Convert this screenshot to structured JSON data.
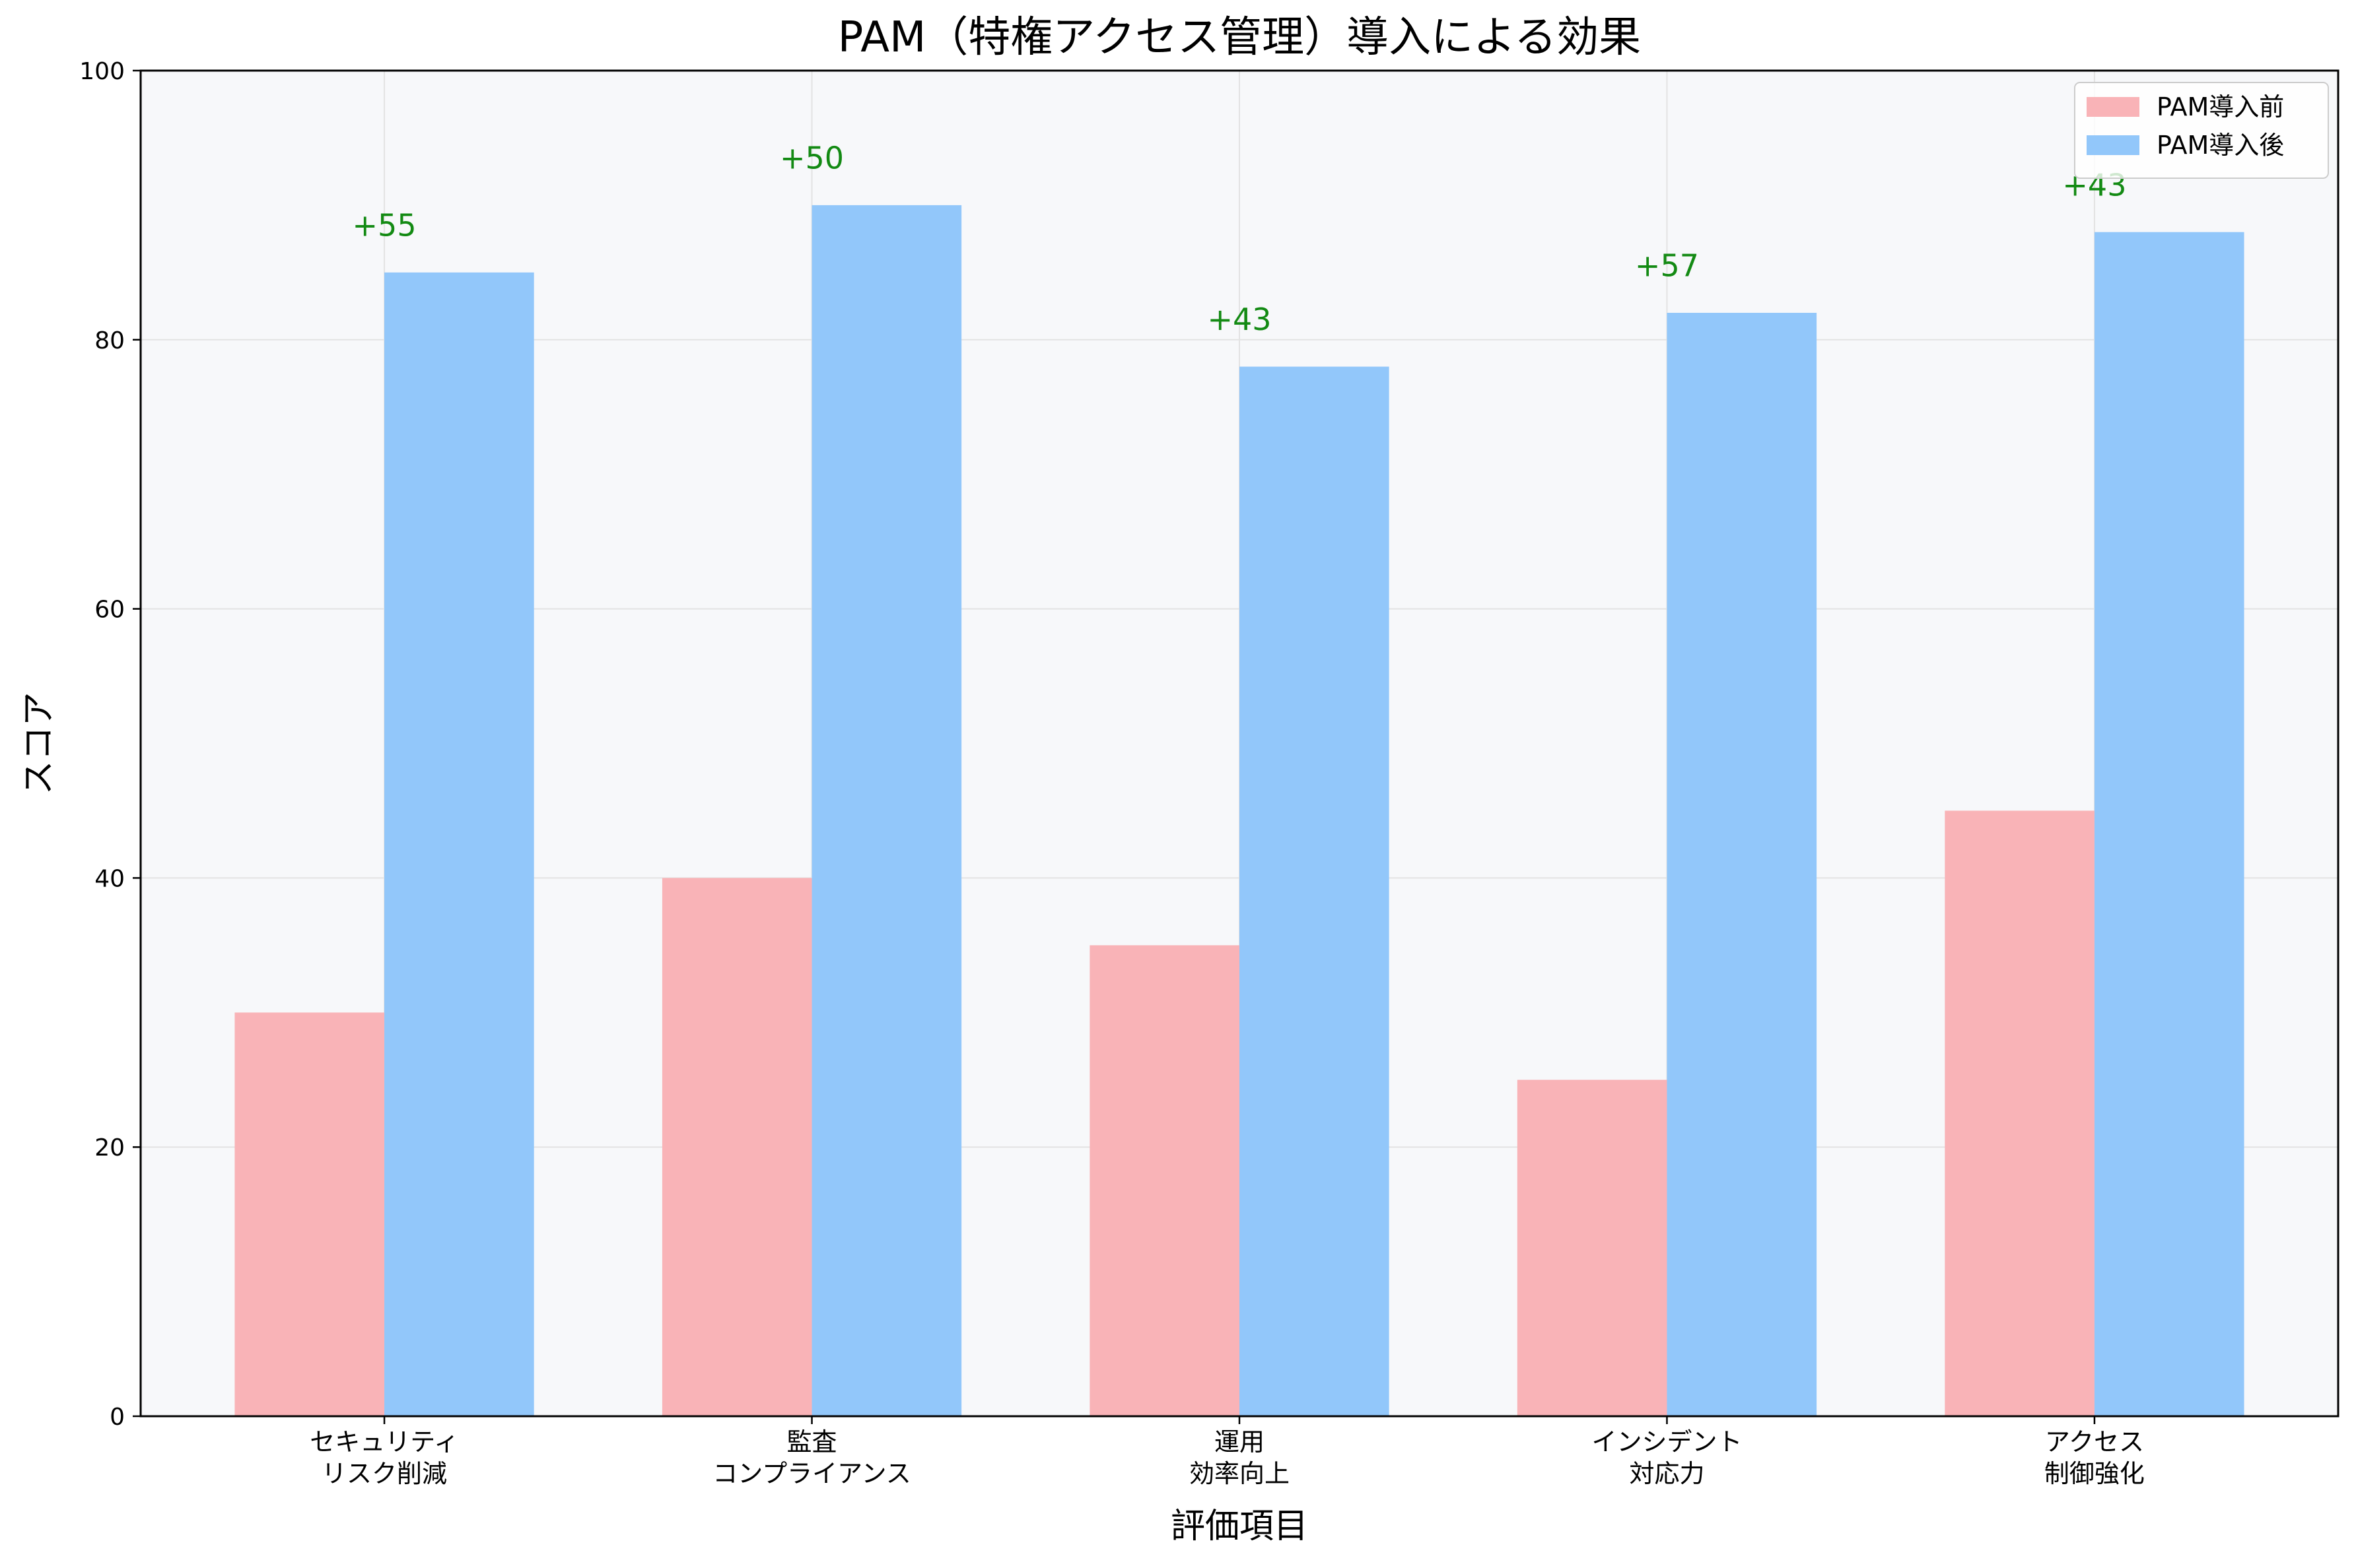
{
  "chart_data": {
    "type": "bar",
    "title": "PAM（特権アクセス管理）導入による効果",
    "xlabel": "評価項目",
    "ylabel": "スコア",
    "ylim": [
      0,
      100
    ],
    "yticks": [
      0,
      20,
      40,
      60,
      80,
      100
    ],
    "grid": true,
    "legend_position": "top-right",
    "categories": [
      [
        "セキュリティ",
        "リスク削減"
      ],
      [
        "監査",
        "コンプライアンス"
      ],
      [
        "運用",
        "効率向上"
      ],
      [
        "インシデント",
        "対応力"
      ],
      [
        "アクセス",
        "制御強化"
      ]
    ],
    "series": [
      {
        "name": "PAM導入前",
        "color": "#f9b3b7",
        "values": [
          30,
          40,
          35,
          25,
          45
        ]
      },
      {
        "name": "PAM導入後",
        "color": "#92c7fa",
        "values": [
          85,
          90,
          78,
          82,
          88
        ]
      }
    ],
    "annotations": {
      "labels": [
        "+55",
        "+50",
        "+43",
        "+57",
        "+43"
      ],
      "color": "#138a13"
    },
    "plot_background": "#f7f8fa",
    "grid_color": "#e3e3e3"
  }
}
